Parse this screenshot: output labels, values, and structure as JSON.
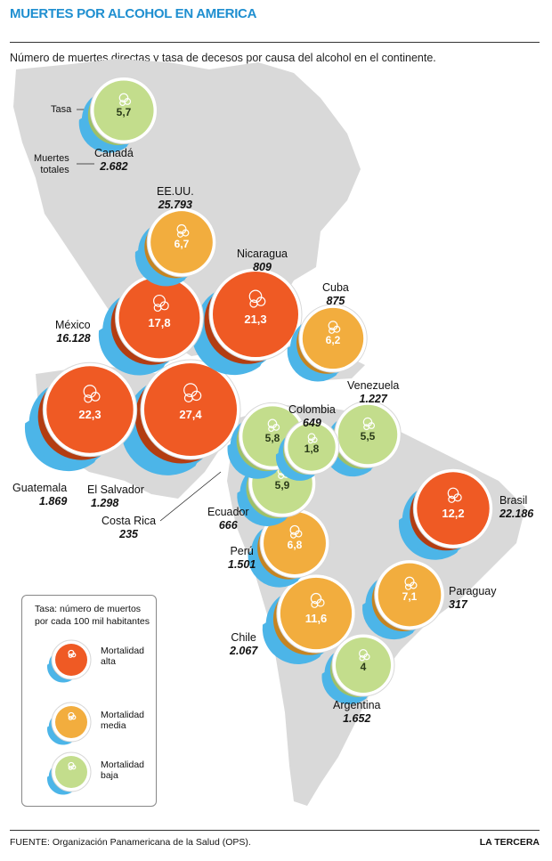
{
  "header": {
    "title": "MUERTES POR ALCOHOL EN AMERICA",
    "subtitle": "Número de muertes directas y tasa de decesos por causa del alcohol en el continente."
  },
  "annotations": {
    "tasa": "Tasa",
    "muertes_totales": "Muertes\ntotales"
  },
  "colors": {
    "alta": "#ef5a24",
    "media": "#f2ad3e",
    "baja": "#c3dd8c",
    "shadow": "#4cb5e8",
    "land": "#d9d9d9"
  },
  "countries": [
    {
      "name": "Canadá",
      "deaths": "2.682",
      "rate": "5,7",
      "level": "baja"
    },
    {
      "name": "EE.UU.",
      "deaths": "25.793",
      "rate": "6,7",
      "level": "media"
    },
    {
      "name": "México",
      "deaths": "16.128",
      "rate": "17,8",
      "level": "alta"
    },
    {
      "name": "Nicaragua",
      "deaths": "809",
      "rate": "21,3",
      "level": "alta"
    },
    {
      "name": "Cuba",
      "deaths": "875",
      "rate": "6,2",
      "level": "media"
    },
    {
      "name": "Guatemala",
      "deaths": "1.869",
      "rate": "22,3",
      "level": "alta"
    },
    {
      "name": "El Salvador",
      "deaths": "1.298",
      "rate": "27,4",
      "level": "alta"
    },
    {
      "name": "Costa Rica",
      "deaths": "235",
      "rate": "5,8",
      "level": "baja"
    },
    {
      "name": "Colombia",
      "deaths": "649",
      "rate": "1,8",
      "level": "baja"
    },
    {
      "name": "Venezuela",
      "deaths": "1.227",
      "rate": "5,5",
      "level": "baja"
    },
    {
      "name": "Ecuador",
      "deaths": "666",
      "rate": "5,9",
      "level": "baja"
    },
    {
      "name": "Perú",
      "deaths": "1.501",
      "rate": "6,8",
      "level": "media"
    },
    {
      "name": "Brasil",
      "deaths": "22.186",
      "rate": "12,2",
      "level": "alta"
    },
    {
      "name": "Paraguay",
      "deaths": "317",
      "rate": "7,1",
      "level": "media"
    },
    {
      "name": "Chile",
      "deaths": "2.067",
      "rate": "11,6",
      "level": "media"
    },
    {
      "name": "Argentina",
      "deaths": "1.652",
      "rate": "4",
      "level": "baja"
    }
  ],
  "legend": {
    "title": "Tasa: número de muertos\npor cada 100 mil habitantes",
    "items": [
      {
        "label": "Mortalidad\nalta",
        "level": "alta"
      },
      {
        "label": "Mortalidad\nmedia",
        "level": "media"
      },
      {
        "label": "Mortalidad\nbaja",
        "level": "baja"
      }
    ]
  },
  "footer": {
    "source": "FUENTE: Organización Panamericana de la Salud (OPS).",
    "brand": "LA TERCERA"
  }
}
